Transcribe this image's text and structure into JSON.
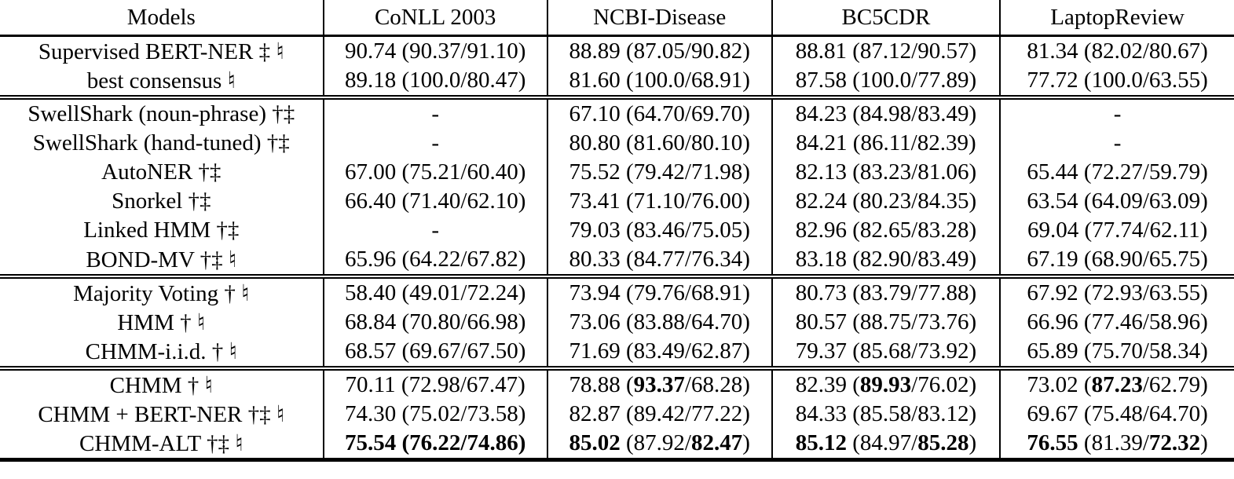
{
  "table": {
    "columns": [
      "Models",
      "CoNLL 2003",
      "NCBI-Disease",
      "BC5CDR",
      "LaptopReview"
    ],
    "dash": "-",
    "groups": [
      {
        "rows": [
          {
            "model": "Supervised BERT-NER ‡ ♮",
            "cells": [
              {
                "f1": "90.74",
                "p": "90.37",
                "r": "91.10",
                "bold": []
              },
              {
                "f1": "88.89",
                "p": "87.05",
                "r": "90.82",
                "bold": []
              },
              {
                "f1": "88.81",
                "p": "87.12",
                "r": "90.57",
                "bold": []
              },
              {
                "f1": "81.34",
                "p": "82.02",
                "r": "80.67",
                "bold": []
              }
            ]
          },
          {
            "model": "best consensus ♮",
            "cells": [
              {
                "f1": "89.18",
                "p": "100.0",
                "r": "80.47",
                "bold": []
              },
              {
                "f1": "81.60",
                "p": "100.0",
                "r": "68.91",
                "bold": []
              },
              {
                "f1": "87.58",
                "p": "100.0",
                "r": "77.89",
                "bold": []
              },
              {
                "f1": "77.72",
                "p": "100.0",
                "r": "63.55",
                "bold": []
              }
            ]
          }
        ]
      },
      {
        "rows": [
          {
            "model": "SwellShark (noun-phrase) †‡",
            "cells": [
              {
                "dash": true
              },
              {
                "f1": "67.10",
                "p": "64.70",
                "r": "69.70",
                "bold": []
              },
              {
                "f1": "84.23",
                "p": "84.98",
                "r": "83.49",
                "bold": []
              },
              {
                "dash": true
              }
            ]
          },
          {
            "model": "SwellShark (hand-tuned) †‡",
            "cells": [
              {
                "dash": true
              },
              {
                "f1": "80.80",
                "p": "81.60",
                "r": "80.10",
                "bold": []
              },
              {
                "f1": "84.21",
                "p": "86.11",
                "r": "82.39",
                "bold": []
              },
              {
                "dash": true
              }
            ]
          },
          {
            "model": "AutoNER †‡",
            "cells": [
              {
                "f1": "67.00",
                "p": "75.21",
                "r": "60.40",
                "bold": []
              },
              {
                "f1": "75.52",
                "p": "79.42",
                "r": "71.98",
                "bold": []
              },
              {
                "f1": "82.13",
                "p": "83.23",
                "r": "81.06",
                "bold": []
              },
              {
                "f1": "65.44",
                "p": "72.27",
                "r": "59.79",
                "bold": []
              }
            ]
          },
          {
            "model": "Snorkel †‡",
            "cells": [
              {
                "f1": "66.40",
                "p": "71.40",
                "r": "62.10",
                "bold": []
              },
              {
                "f1": "73.41",
                "p": "71.10",
                "r": "76.00",
                "bold": []
              },
              {
                "f1": "82.24",
                "p": "80.23",
                "r": "84.35",
                "bold": []
              },
              {
                "f1": "63.54",
                "p": "64.09",
                "r": "63.09",
                "bold": []
              }
            ]
          },
          {
            "model": "Linked HMM †‡",
            "cells": [
              {
                "dash": true
              },
              {
                "f1": "79.03",
                "p": "83.46",
                "r": "75.05",
                "bold": []
              },
              {
                "f1": "82.96",
                "p": "82.65",
                "r": "83.28",
                "bold": []
              },
              {
                "f1": "69.04",
                "p": "77.74",
                "r": "62.11",
                "bold": []
              }
            ]
          },
          {
            "model": "BOND-MV †‡ ♮",
            "cells": [
              {
                "f1": "65.96",
                "p": "64.22",
                "r": "67.82",
                "bold": []
              },
              {
                "f1": "80.33",
                "p": "84.77",
                "r": "76.34",
                "bold": []
              },
              {
                "f1": "83.18",
                "p": "82.90",
                "r": "83.49",
                "bold": []
              },
              {
                "f1": "67.19",
                "p": "68.90",
                "r": "65.75",
                "bold": []
              }
            ]
          }
        ]
      },
      {
        "rows": [
          {
            "model": "Majority Voting † ♮",
            "cells": [
              {
                "f1": "58.40",
                "p": "49.01",
                "r": "72.24",
                "bold": []
              },
              {
                "f1": "73.94",
                "p": "79.76",
                "r": "68.91",
                "bold": []
              },
              {
                "f1": "80.73",
                "p": "83.79",
                "r": "77.88",
                "bold": []
              },
              {
                "f1": "67.92",
                "p": "72.93",
                "r": "63.55",
                "bold": []
              }
            ]
          },
          {
            "model": "HMM † ♮",
            "cells": [
              {
                "f1": "68.84",
                "p": "70.80",
                "r": "66.98",
                "bold": []
              },
              {
                "f1": "73.06",
                "p": "83.88",
                "r": "64.70",
                "bold": []
              },
              {
                "f1": "80.57",
                "p": "88.75",
                "r": "73.76",
                "bold": []
              },
              {
                "f1": "66.96",
                "p": "77.46",
                "r": "58.96",
                "bold": []
              }
            ]
          },
          {
            "model": "CHMM-i.i.d. † ♮",
            "cells": [
              {
                "f1": "68.57",
                "p": "69.67",
                "r": "67.50",
                "bold": []
              },
              {
                "f1": "71.69",
                "p": "83.49",
                "r": "62.87",
                "bold": []
              },
              {
                "f1": "79.37",
                "p": "85.68",
                "r": "73.92",
                "bold": []
              },
              {
                "f1": "65.89",
                "p": "75.70",
                "r": "58.34",
                "bold": []
              }
            ]
          }
        ]
      },
      {
        "rows": [
          {
            "model": "CHMM † ♮",
            "cells": [
              {
                "f1": "70.11",
                "p": "72.98",
                "r": "67.47",
                "bold": []
              },
              {
                "f1": "78.88",
                "p": "93.37",
                "r": "68.28",
                "bold": [
                  "p"
                ]
              },
              {
                "f1": "82.39",
                "p": "89.93",
                "r": "76.02",
                "bold": [
                  "p"
                ]
              },
              {
                "f1": "73.02",
                "p": "87.23",
                "r": "62.79",
                "bold": [
                  "p"
                ]
              }
            ]
          },
          {
            "model": "CHMM + BERT-NER †‡ ♮",
            "cells": [
              {
                "f1": "74.30",
                "p": "75.02",
                "r": "73.58",
                "bold": []
              },
              {
                "f1": "82.87",
                "p": "89.42",
                "r": "77.22",
                "bold": []
              },
              {
                "f1": "84.33",
                "p": "85.58",
                "r": "83.12",
                "bold": []
              },
              {
                "f1": "69.67",
                "p": "75.48",
                "r": "64.70",
                "bold": []
              }
            ]
          },
          {
            "model": "CHMM-ALT †‡ ♮",
            "cells": [
              {
                "f1": "75.54",
                "p": "76.22",
                "r": "74.86",
                "bold": [
                  "f1",
                  "p",
                  "r"
                ]
              },
              {
                "f1": "85.02",
                "p": "87.92",
                "r": "82.47",
                "bold": [
                  "f1",
                  "r"
                ]
              },
              {
                "f1": "85.12",
                "p": "84.97",
                "r": "85.28",
                "bold": [
                  "f1",
                  "r"
                ]
              },
              {
                "f1": "76.55",
                "p": "81.39",
                "r": "72.32",
                "bold": [
                  "f1",
                  "r"
                ]
              }
            ]
          }
        ]
      }
    ]
  }
}
